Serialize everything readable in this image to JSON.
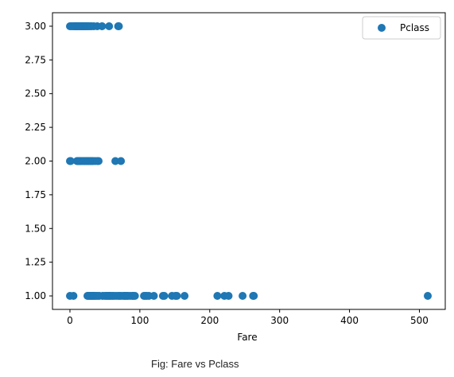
{
  "chart_data": {
    "type": "scatter",
    "title": "",
    "xlabel": "Fare",
    "ylabel": "",
    "xlim": [
      -25,
      537
    ],
    "ylim": [
      0.9,
      3.1
    ],
    "xticks": [
      0,
      100,
      200,
      300,
      400,
      500
    ],
    "yticks": [
      1.0,
      1.25,
      1.5,
      1.75,
      2.0,
      2.25,
      2.5,
      2.75,
      3.0
    ],
    "xtick_labels": [
      "0",
      "100",
      "200",
      "300",
      "400",
      "500"
    ],
    "ytick_labels": [
      "1.00",
      "1.25",
      "1.50",
      "1.75",
      "2.00",
      "2.25",
      "2.50",
      "2.75",
      "3.00"
    ],
    "grid": false,
    "legend_position": "top-right",
    "series": [
      {
        "name": "Pclass",
        "color": "#1f77b4",
        "points": [
          [
            0,
            3
          ],
          [
            2,
            3
          ],
          [
            4,
            3
          ],
          [
            6,
            3
          ],
          [
            7,
            3
          ],
          [
            7.5,
            3
          ],
          [
            8,
            3
          ],
          [
            9,
            3
          ],
          [
            10,
            3
          ],
          [
            11,
            3
          ],
          [
            12,
            3
          ],
          [
            13,
            3
          ],
          [
            14,
            3
          ],
          [
            15,
            3
          ],
          [
            16,
            3
          ],
          [
            17,
            3
          ],
          [
            18,
            3
          ],
          [
            19,
            3
          ],
          [
            20,
            3
          ],
          [
            21,
            3
          ],
          [
            22,
            3
          ],
          [
            23,
            3
          ],
          [
            24,
            3
          ],
          [
            25,
            3
          ],
          [
            27,
            3
          ],
          [
            29,
            3
          ],
          [
            31,
            3
          ],
          [
            34,
            3
          ],
          [
            39,
            3
          ],
          [
            46,
            3
          ],
          [
            56,
            3
          ],
          [
            69,
            3
          ],
          [
            70,
            3
          ],
          [
            0,
            2
          ],
          [
            1,
            2
          ],
          [
            10,
            2
          ],
          [
            11,
            2
          ],
          [
            12,
            2
          ],
          [
            13,
            2
          ],
          [
            14,
            2
          ],
          [
            15,
            2
          ],
          [
            16,
            2
          ],
          [
            18,
            2
          ],
          [
            20,
            2
          ],
          [
            21,
            2
          ],
          [
            23,
            2
          ],
          [
            24,
            2
          ],
          [
            26,
            2
          ],
          [
            27,
            2
          ],
          [
            29,
            2
          ],
          [
            30,
            2
          ],
          [
            32,
            2
          ],
          [
            33,
            2
          ],
          [
            36,
            2
          ],
          [
            39,
            2
          ],
          [
            41,
            2
          ],
          [
            65,
            2
          ],
          [
            73,
            2
          ],
          [
            0,
            1
          ],
          [
            5,
            1
          ],
          [
            25,
            1
          ],
          [
            26,
            1
          ],
          [
            27,
            1
          ],
          [
            28,
            1
          ],
          [
            29,
            1
          ],
          [
            30,
            1
          ],
          [
            31,
            1
          ],
          [
            32,
            1
          ],
          [
            33,
            1
          ],
          [
            34,
            1
          ],
          [
            35,
            1
          ],
          [
            36,
            1
          ],
          [
            38,
            1
          ],
          [
            40,
            1
          ],
          [
            42,
            1
          ],
          [
            47,
            1
          ],
          [
            50,
            1
          ],
          [
            52,
            1
          ],
          [
            53,
            1
          ],
          [
            55,
            1
          ],
          [
            56,
            1
          ],
          [
            57,
            1
          ],
          [
            59,
            1
          ],
          [
            61,
            1
          ],
          [
            63,
            1
          ],
          [
            66,
            1
          ],
          [
            69,
            1
          ],
          [
            71,
            1
          ],
          [
            73,
            1
          ],
          [
            76,
            1
          ],
          [
            78,
            1
          ],
          [
            79,
            1
          ],
          [
            80,
            1
          ],
          [
            82,
            1
          ],
          [
            83,
            1
          ],
          [
            86,
            1
          ],
          [
            89,
            1
          ],
          [
            90,
            1
          ],
          [
            91,
            1
          ],
          [
            93,
            1
          ],
          [
            106,
            1
          ],
          [
            108,
            1
          ],
          [
            110,
            1
          ],
          [
            113,
            1
          ],
          [
            120,
            1
          ],
          [
            133,
            1
          ],
          [
            135,
            1
          ],
          [
            146,
            1
          ],
          [
            151,
            1
          ],
          [
            153,
            1
          ],
          [
            164,
            1
          ],
          [
            211,
            1
          ],
          [
            221,
            1
          ],
          [
            227,
            1
          ],
          [
            247,
            1
          ],
          [
            262,
            1
          ],
          [
            263,
            1
          ],
          [
            512,
            1
          ]
        ]
      }
    ]
  },
  "caption": "Fig: Fare vs Pclass"
}
